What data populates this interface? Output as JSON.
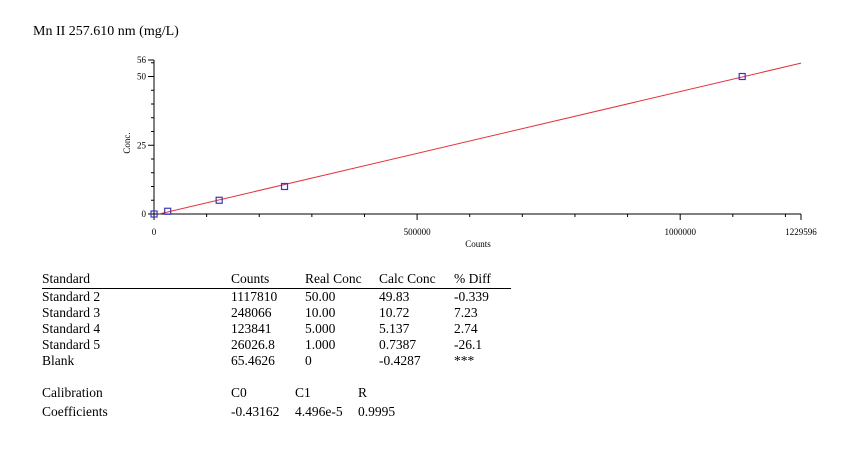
{
  "chart_data": {
    "type": "scatter",
    "title": "Mn II 257.610 nm (mg/L)",
    "xlabel": "Counts",
    "ylabel": "Conc.",
    "xlim": [
      0,
      1229596
    ],
    "ylim": [
      0,
      56
    ],
    "x_ticks": [
      "0",
      "500000",
      "1000000",
      "1229596"
    ],
    "x_tick_values": [
      0,
      500000,
      1000000,
      1229596
    ],
    "y_ticks": [
      "0",
      "25",
      "50",
      "56"
    ],
    "y_tick_values": [
      0,
      25,
      50,
      56
    ],
    "points": [
      {
        "x": 1117810,
        "y": 50.0
      },
      {
        "x": 248066,
        "y": 10.0
      },
      {
        "x": 123841,
        "y": 5.0
      },
      {
        "x": 26026.8,
        "y": 1.0
      },
      {
        "x": 65.4626,
        "y": 0
      }
    ],
    "fit_line": {
      "intercept": -0.43162,
      "slope": 4.496e-05
    },
    "line_color": "#e8303a",
    "marker_color": "#3a36c8"
  },
  "table": {
    "headers": [
      "Standard",
      "Counts",
      "Real Conc",
      "Calc Conc",
      "% Diff"
    ],
    "rows": [
      [
        "Standard 2",
        "1117810",
        "50.00",
        "49.83",
        "-0.339"
      ],
      [
        "Standard 3",
        "248066",
        "10.00",
        "10.72",
        "7.23"
      ],
      [
        "Standard 4",
        "123841",
        "5.000",
        "5.137",
        "2.74"
      ],
      [
        "Standard 5",
        "26026.8",
        "1.000",
        "0.7387",
        "-26.1"
      ],
      [
        "Blank",
        "65.4626",
        "0",
        "-0.4287",
        "***"
      ]
    ]
  },
  "calibration": {
    "label1": "Calibration",
    "label2": "Coefficients",
    "headers": [
      "C0",
      "C1",
      "R"
    ],
    "values": [
      "-0.43162",
      "4.496e-5",
      "0.9995"
    ]
  }
}
